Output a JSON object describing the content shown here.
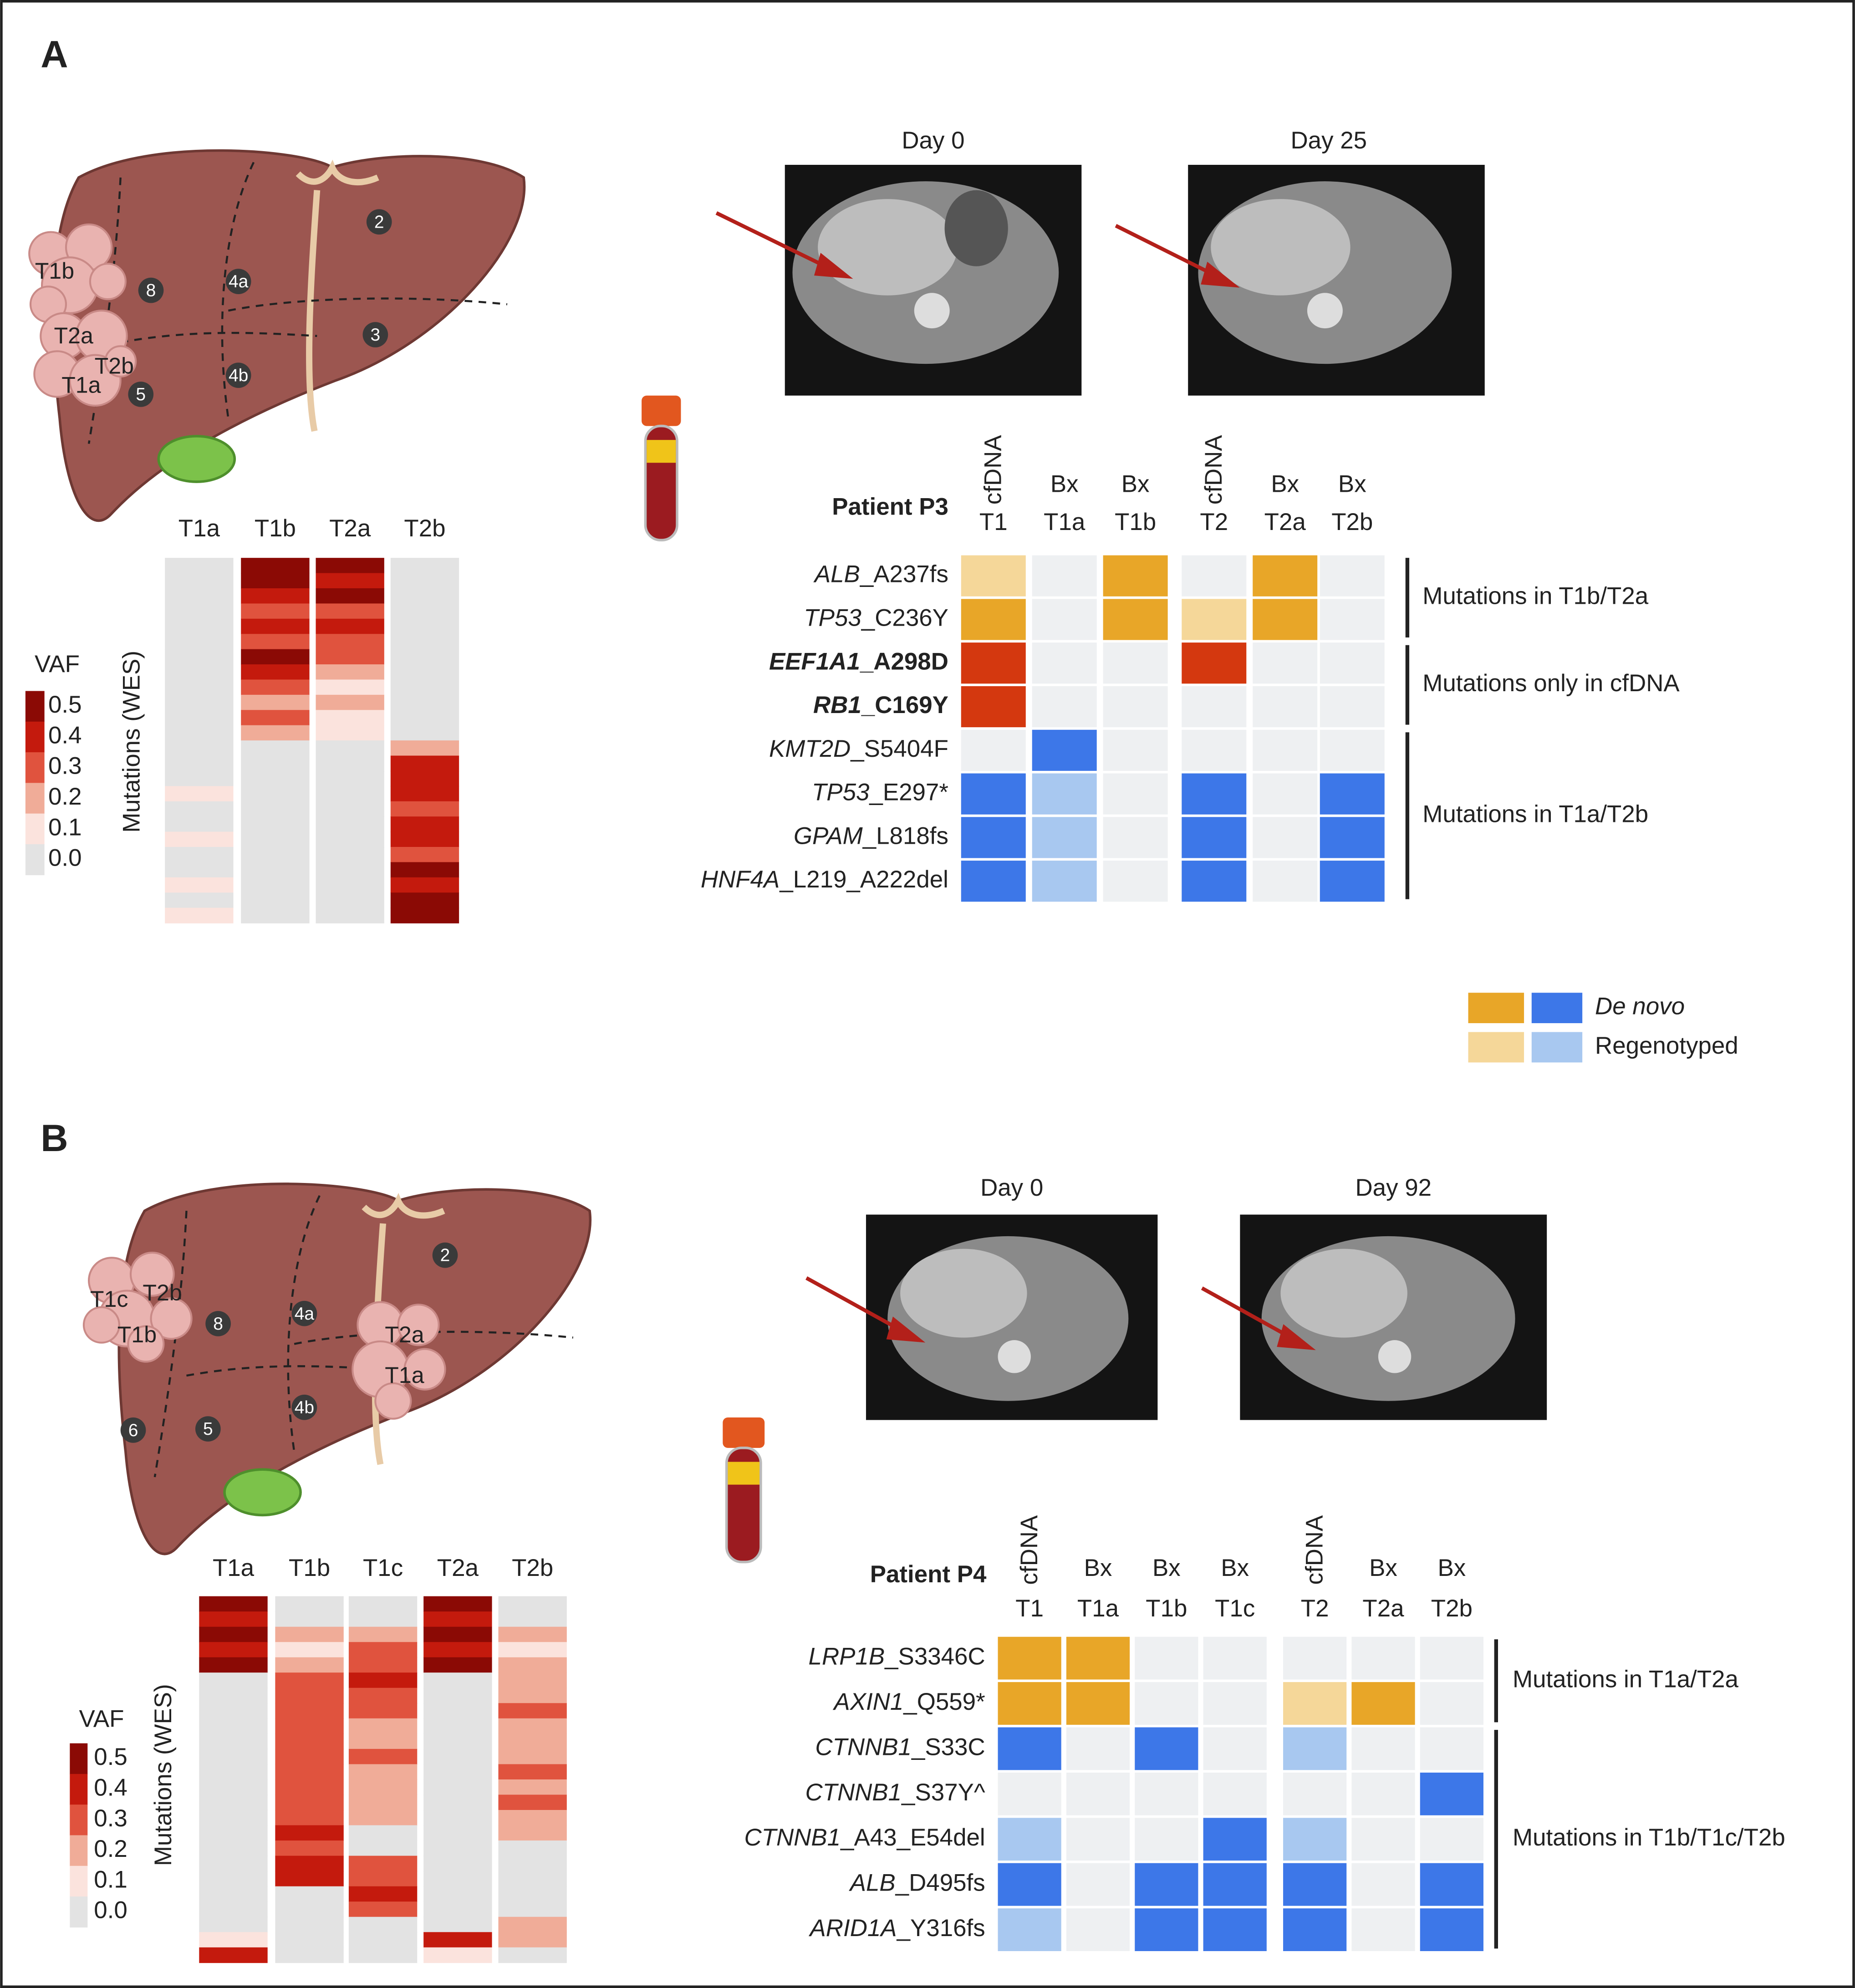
{
  "panel_a": {
    "letter": "A",
    "segments": [
      "2",
      "8",
      "4a",
      "3",
      "4b",
      "5"
    ],
    "tumors": [
      "T1b",
      "T2a",
      "T2b",
      "T1a"
    ],
    "heatmap": {
      "y_label": "Mutations (WES)",
      "legend_title": "VAF",
      "legend_ticks": [
        0.5,
        0.4,
        0.3,
        0.2,
        0.1,
        {
          "value": 0,
          "label": "0.0"
        }
      ],
      "legend_colors": [
        "#8B0A05",
        "#C41A0D",
        "#E0533E",
        "#F0AC98",
        "#FBE3DD",
        "#E3E3E3"
      ],
      "columns": [
        {
          "name": "T1a",
          "values": [
            0,
            0,
            0,
            0,
            0,
            0,
            0,
            0,
            0,
            0,
            0,
            0,
            0,
            0,
            0,
            0.1,
            0,
            0,
            0.1,
            0,
            0,
            0.1,
            0,
            0.1
          ]
        },
        {
          "name": "T1b",
          "values": [
            0.5,
            0.5,
            0.4,
            0.3,
            0.4,
            0.3,
            0.5,
            0.4,
            0.3,
            0.2,
            0.3,
            0.2,
            0,
            0,
            0,
            0,
            0,
            0,
            0,
            0,
            0,
            0,
            0,
            0
          ]
        },
        {
          "name": "T2a",
          "values": [
            0.5,
            0.4,
            0.5,
            0.3,
            0.4,
            0.3,
            0.3,
            0.2,
            0.1,
            0.2,
            0.1,
            0.1,
            0,
            0,
            0,
            0,
            0,
            0,
            0,
            0,
            0,
            0,
            0,
            0
          ]
        },
        {
          "name": "T2b",
          "values": [
            0,
            0,
            0,
            0,
            0,
            0,
            0,
            0,
            0,
            0,
            0,
            0,
            0.2,
            0.4,
            0.4,
            0.4,
            0.3,
            0.4,
            0.4,
            0.3,
            0.5,
            0.4,
            0.5,
            0.5
          ]
        }
      ]
    },
    "scans": [
      "Day 0",
      "Day 25"
    ],
    "patient": "Patient P3",
    "columns": [
      {
        "top": "cfDNA",
        "bottom": "T1",
        "vertical": true
      },
      {
        "top": "Bx",
        "bottom": "T1a",
        "vertical": false
      },
      {
        "top": "Bx",
        "bottom": "T1b",
        "vertical": false
      },
      {
        "top": "cfDNA",
        "bottom": "T2",
        "vertical": true
      },
      {
        "top": "Bx",
        "bottom": "T2a",
        "vertical": false
      },
      {
        "top": "Bx",
        "bottom": "T2b",
        "vertical": false
      }
    ],
    "groups": [
      {
        "label": "Mutations in T1b/T2a",
        "rows": [
          {
            "gene": "ALB",
            "change": "_A237fs",
            "bold": false,
            "cells": [
              "#F5D799",
              "#EEF0F2",
              "#E8A628",
              "#EEF0F2",
              "#E8A628",
              "#EEF0F2"
            ]
          },
          {
            "gene": "TP53",
            "change": "_C236Y",
            "bold": false,
            "cells": [
              "#E8A628",
              "#EEF0F2",
              "#E8A628",
              "#F5D799",
              "#E8A628",
              "#EEF0F2"
            ]
          }
        ]
      },
      {
        "label": "Mutations only in cfDNA",
        "rows": [
          {
            "gene": "EEF1A1",
            "change": "_A298D",
            "bold": true,
            "cells": [
              "#D4380F",
              "#EEF0F2",
              "#EEF0F2",
              "#D4380F",
              "#EEF0F2",
              "#EEF0F2"
            ]
          },
          {
            "gene": "RB1",
            "change": "_C169Y",
            "bold": true,
            "cells": [
              "#D4380F",
              "#EEF0F2",
              "#EEF0F2",
              "#EEF0F2",
              "#EEF0F2",
              "#EEF0F2"
            ]
          }
        ]
      },
      {
        "label": "Mutations in T1a/T2b",
        "rows": [
          {
            "gene": "KMT2D",
            "change": "_S5404F",
            "bold": false,
            "cells": [
              "#EEF0F2",
              "#3D77E8",
              "#EEF0F2",
              "#EEF0F2",
              "#EEF0F2",
              "#EEF0F2"
            ]
          },
          {
            "gene": "TP53",
            "change": "_E297*",
            "bold": false,
            "cells": [
              "#3D77E8",
              "#A8C8F0",
              "#EEF0F2",
              "#3D77E8",
              "#EEF0F2",
              "#3D77E8"
            ]
          },
          {
            "gene": "GPAM",
            "change": "_L818fs",
            "bold": false,
            "cells": [
              "#3D77E8",
              "#A8C8F0",
              "#EEF0F2",
              "#3D77E8",
              "#EEF0F2",
              "#3D77E8"
            ]
          },
          {
            "gene": "HNF4A",
            "change": "_L219_A222del",
            "bold": false,
            "cells": [
              "#3D77E8",
              "#A8C8F0",
              "#EEF0F2",
              "#3D77E8",
              "#EEF0F2",
              "#3D77E8"
            ]
          }
        ]
      }
    ]
  },
  "legend": [
    {
      "label": "De novo",
      "italic": true,
      "colors": [
        "#E8A628",
        "#3D77E8"
      ]
    },
    {
      "label": "Regenotyped",
      "italic": false,
      "colors": [
        "#F5D799",
        "#A8C8F0"
      ]
    }
  ],
  "panel_b": {
    "letter": "B",
    "segments": [
      "2",
      "8",
      "4a",
      "4b",
      "5",
      "6"
    ],
    "tumors": [
      "T1c",
      "T2b",
      "T1b",
      "T2a",
      "T1a"
    ],
    "heatmap": {
      "y_label": "Mutations (WES)",
      "legend_title": "VAF",
      "legend_ticks": [
        0.5,
        0.4,
        0.3,
        0.2,
        0.1,
        {
          "value": 0,
          "label": "0.0"
        }
      ],
      "legend_colors": [
        "#8B0A05",
        "#C41A0D",
        "#E0533E",
        "#F0AC98",
        "#FBE3DD",
        "#E3E3E3"
      ],
      "columns": [
        {
          "name": "T1a",
          "values": [
            0.5,
            0.4,
            0.5,
            0.4,
            0.5,
            0,
            0,
            0,
            0,
            0,
            0,
            0,
            0,
            0,
            0,
            0,
            0,
            0,
            0,
            0,
            0,
            0,
            0.1,
            0.4
          ]
        },
        {
          "name": "T1b",
          "values": [
            0,
            0,
            0.2,
            0.1,
            0.2,
            0.3,
            0.3,
            0.3,
            0.3,
            0.3,
            0.3,
            0.3,
            0.3,
            0.3,
            0.3,
            0.4,
            0.3,
            0.4,
            0.4,
            0,
            0,
            0,
            0,
            0
          ]
        },
        {
          "name": "T1c",
          "values": [
            0,
            0,
            0.2,
            0.3,
            0.3,
            0.4,
            0.3,
            0.3,
            0.2,
            0.2,
            0.3,
            0.2,
            0.2,
            0.2,
            0.2,
            0,
            0,
            0.3,
            0.3,
            0.4,
            0.3,
            0,
            0,
            0
          ]
        },
        {
          "name": "T2a",
          "values": [
            0.5,
            0.4,
            0.5,
            0.4,
            0.5,
            0,
            0,
            0,
            0,
            0,
            0,
            0,
            0,
            0,
            0,
            0,
            0,
            0,
            0,
            0,
            0,
            0,
            0.4,
            0.1
          ]
        },
        {
          "name": "T2b",
          "values": [
            0,
            0,
            0.2,
            0.1,
            0.2,
            0.2,
            0.2,
            0.3,
            0.2,
            0.2,
            0.2,
            0.3,
            0.2,
            0.3,
            0.2,
            0.2,
            0,
            0,
            0,
            0,
            0,
            0.2,
            0.2,
            0
          ]
        }
      ]
    },
    "scans": [
      "Day 0",
      "Day 92"
    ],
    "patient": "Patient P4",
    "columns": [
      {
        "top": "cfDNA",
        "bottom": "T1",
        "vertical": true
      },
      {
        "top": "Bx",
        "bottom": "T1a",
        "vertical": false
      },
      {
        "top": "Bx",
        "bottom": "T1b",
        "vertical": false
      },
      {
        "top": "Bx",
        "bottom": "T1c",
        "vertical": false
      },
      {
        "top": "cfDNA",
        "bottom": "T2",
        "vertical": true
      },
      {
        "top": "Bx",
        "bottom": "T2a",
        "vertical": false
      },
      {
        "top": "Bx",
        "bottom": "T2b",
        "vertical": false
      }
    ],
    "groups": [
      {
        "label": "Mutations in T1a/T2a",
        "rows": [
          {
            "gene": "LRP1B",
            "change": "_S3346C",
            "bold": false,
            "cells": [
              "#E8A628",
              "#E8A628",
              "#EEF0F2",
              "#EEF0F2",
              "#EEF0F2",
              "#EEF0F2",
              "#EEF0F2"
            ]
          },
          {
            "gene": "AXIN1",
            "change": "_Q559*",
            "bold": false,
            "cells": [
              "#E8A628",
              "#E8A628",
              "#EEF0F2",
              "#EEF0F2",
              "#F5D799",
              "#E8A628",
              "#EEF0F2"
            ]
          }
        ]
      },
      {
        "label": "Mutations in T1b/T1c/T2b",
        "rows": [
          {
            "gene": "CTNNB1",
            "change": "_S33C",
            "bold": false,
            "cells": [
              "#3D77E8",
              "#EEF0F2",
              "#3D77E8",
              "#EEF0F2",
              "#A8C8F0",
              "#EEF0F2",
              "#EEF0F2"
            ]
          },
          {
            "gene": "CTNNB1",
            "change": "_S37Y^",
            "bold": false,
            "cells": [
              "#EEF0F2",
              "#EEF0F2",
              "#EEF0F2",
              "#EEF0F2",
              "#EEF0F2",
              "#EEF0F2",
              "#3D77E8"
            ]
          },
          {
            "gene": "CTNNB1",
            "change": "_A43_E54del",
            "bold": false,
            "cells": [
              "#A8C8F0",
              "#EEF0F2",
              "#EEF0F2",
              "#3D77E8",
              "#A8C8F0",
              "#EEF0F2",
              "#EEF0F2"
            ]
          },
          {
            "gene": "ALB",
            "change": "_D495fs",
            "bold": false,
            "cells": [
              "#3D77E8",
              "#EEF0F2",
              "#3D77E8",
              "#3D77E8",
              "#3D77E8",
              "#EEF0F2",
              "#3D77E8"
            ]
          },
          {
            "gene": "ARID1A",
            "change": "_Y316fs",
            "bold": false,
            "cells": [
              "#A8C8F0",
              "#EEF0F2",
              "#3D77E8",
              "#3D77E8",
              "#3D77E8",
              "#EEF0F2",
              "#3D77E8"
            ]
          }
        ]
      }
    ]
  }
}
